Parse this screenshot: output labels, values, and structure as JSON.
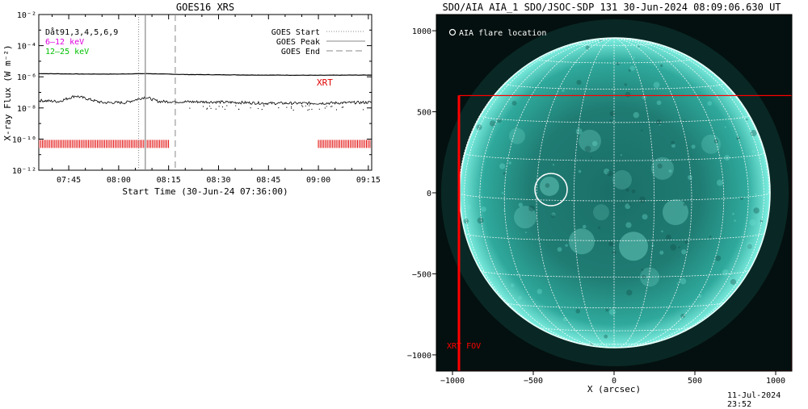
{
  "chart_data": [
    {
      "type": "line",
      "title": "GOES16 XRS",
      "xlabel": "Start Time (30-Jun-24 07:36:00)",
      "ylabel": "X-ray Flux (W m⁻²)",
      "x_range": [
        "07:36",
        "09:16"
      ],
      "xticks": [
        "07:45",
        "08:00",
        "08:15",
        "08:30",
        "08:45",
        "09:00",
        "09:15"
      ],
      "y_log": true,
      "ylim": [
        1e-12,
        0.01
      ],
      "yticks": [
        "10⁻¹²",
        "10⁻¹⁰",
        "10⁻⁸",
        "10⁻⁶",
        "10⁻⁴",
        "10⁻²"
      ],
      "legend_left": [
        {
          "label": "Dåt91,3,4,5,6,9",
          "color": "#000000"
        },
        {
          "label": "6–12 keV",
          "color": "#e000e0"
        },
        {
          "label": "12–25 keV",
          "color": "#00c000"
        }
      ],
      "legend_right": [
        {
          "label": "GOES Start",
          "style": "dotted"
        },
        {
          "label": "GOES Peak",
          "style": "solid"
        },
        {
          "label": "GOES End",
          "style": "dashed"
        }
      ],
      "events": {
        "goes_start": "08:06",
        "goes_peak": "08:08",
        "goes_end": "08:17"
      },
      "series": [
        {
          "name": "",
          "values_desc": "long channel",
          "x": [
            "07:36",
            "07:50",
            "08:00",
            "08:08",
            "08:20",
            "08:40",
            "09:00",
            "09:16"
          ],
          "y": [
            1.6e-06,
            1.5e-06,
            1.5e-06,
            1.6e-06,
            1.4e-06,
            1.3e-06,
            1.25e-06,
            1.3e-06
          ]
        },
        {
          "name": "",
          "values_desc": "short channel",
          "x": [
            "07:36",
            "07:42",
            "07:47",
            "07:55",
            "08:02",
            "08:08",
            "08:12",
            "08:20",
            "08:30",
            "08:45",
            "09:00",
            "09:16"
          ],
          "y": [
            3e-08,
            2.6e-08,
            6e-08,
            2.2e-08,
            2.2e-08,
            5e-08,
            2.6e-08,
            2.5e-08,
            2.4e-08,
            2e-08,
            2e-08,
            2.3e-08
          ]
        }
      ],
      "xrt_label": "XRT",
      "xrt_coverage": [
        [
          "07:36",
          "08:15"
        ],
        [
          "09:00",
          "09:16"
        ]
      ]
    },
    {
      "type": "heatmap",
      "title": "SDO/AIA AIA_1 SDO/JSOC-SDP 131 30-Jun-2024 08:09:06.630 UT",
      "xlabel": "X (arcsec)",
      "ylabel": "",
      "xlim": [
        -1100,
        1100
      ],
      "ylim": [
        -1100,
        1100
      ],
      "xticks": [
        "−1000",
        "−500",
        "0",
        "500",
        "1000"
      ],
      "yticks": [
        "−1000",
        "−500",
        "0",
        "500",
        "1000"
      ],
      "legend": "AIA flare location",
      "flare_location": [
        -390,
        20
      ],
      "xrt_fov_label": "XRT FOV",
      "xrt_fov": {
        "x0": -960,
        "x1": 1100,
        "y0": -1100,
        "y1": 600
      },
      "colors": {
        "disk": "#4fd9c8",
        "xrt": "#ff0000"
      }
    }
  ],
  "timestamp": "11-Jul-2024 23:52"
}
